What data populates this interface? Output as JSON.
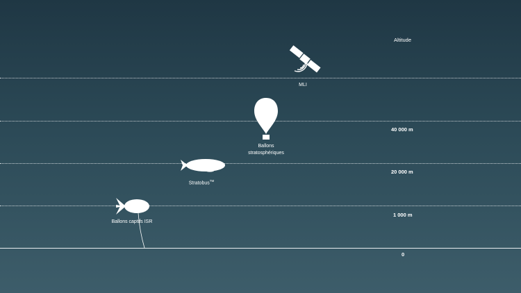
{
  "altitude_header": "Altitude",
  "altitude_levels": [
    {
      "value_m": 40000,
      "label": "40 000 m"
    },
    {
      "value_m": 20000,
      "label": "20 000 m"
    },
    {
      "value_m": 1000,
      "label": "1 000 m"
    },
    {
      "value_m": 0,
      "label": "0"
    }
  ],
  "objects": {
    "satellite": {
      "label": "MLI",
      "icon": "satellite-icon"
    },
    "stratospheric_balloon": {
      "label_line1": "Ballons",
      "label_line2": "stratosphériques",
      "icon": "stratospheric-balloon-icon"
    },
    "stratobus": {
      "label": "Stratobus",
      "trademark": "TM",
      "icon": "airship-icon"
    },
    "captive_balloon": {
      "label": "Ballons captifs ISR",
      "icon": "captive-aerostat-icon"
    }
  },
  "colors": {
    "background_top": "#1f3744",
    "background_bottom": "#3d5d6a",
    "foreground": "#ffffff"
  }
}
